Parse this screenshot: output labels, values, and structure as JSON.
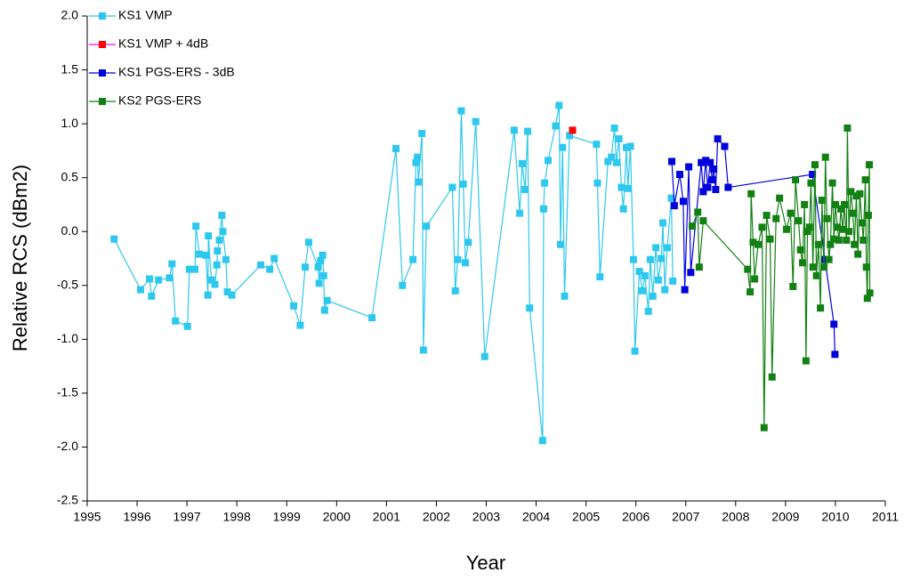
{
  "chart_data": {
    "type": "line",
    "xlabel": "Year",
    "ylabel": "Relative RCS (dBm2)",
    "xlim": [
      1995,
      2011
    ],
    "xticks": [
      1995,
      1996,
      1997,
      1998,
      1999,
      2000,
      2001,
      2002,
      2003,
      2004,
      2005,
      2006,
      2007,
      2008,
      2009,
      2010,
      2011
    ],
    "ylim": [
      -2.5,
      2.0
    ],
    "yticks": [
      {
        "value": 2,
        "label": "2.0"
      },
      1.5,
      {
        "value": 1,
        "label": "1.0"
      },
      0.5,
      {
        "value": 0,
        "label": "0.0"
      },
      -0.5,
      {
        "value": -1,
        "label": "-1.0"
      },
      -1.5,
      {
        "value": -2,
        "label": "-2.0"
      },
      -2.5
    ],
    "legend": "upper left",
    "grid": false,
    "series": [
      {
        "name": "KS1 VMP",
        "color": "#2ec8ee",
        "x": [
          1995.54,
          1996.07,
          1996.25,
          1996.29,
          1996.43,
          1996.65,
          1996.7,
          1996.77,
          1997.01,
          1997.05,
          1997.16,
          1997.18,
          1997.25,
          1997.38,
          1997.42,
          1997.43,
          1997.49,
          1997.56,
          1997.6,
          1997.61,
          1997.65,
          1997.7,
          1997.72,
          1997.78,
          1997.81,
          1997.9,
          1998.48,
          1998.66,
          1998.75,
          1999.14,
          1999.27,
          1999.37,
          1999.44,
          1999.63,
          1999.65,
          1999.68,
          1999.72,
          1999.74,
          1999.76,
          1999.81,
          2000.71,
          2001.19,
          2001.32,
          2001.53,
          2001.59,
          2001.62,
          2001.64,
          2001.71,
          2001.74,
          2001.8,
          2002.32,
          2002.38,
          2002.43,
          2002.5,
          2002.54,
          2002.58,
          2002.64,
          2002.79,
          2002.97,
          2003.56,
          2003.67,
          2003.72,
          2003.78,
          2003.83,
          2003.87,
          2004.13,
          2004.15,
          2004.17,
          2004.24,
          2004.39,
          2004.46,
          2004.49,
          2004.53,
          2004.57,
          2004.67,
          2005.21,
          2005.23,
          2005.28,
          2005.44,
          2005.51,
          2005.57,
          2005.61,
          2005.66,
          2005.71,
          2005.75,
          2005.81,
          2005.84,
          2005.89,
          2005.95,
          2005.98,
          2006.07,
          2006.13,
          2006.18,
          2006.25,
          2006.29,
          2006.34,
          2006.4,
          2006.45,
          2006.51,
          2006.54,
          2006.58,
          2006.63,
          2006.71,
          2006.74
        ],
        "values": [
          -0.07,
          -0.54,
          -0.44,
          -0.6,
          -0.45,
          -0.43,
          -0.3,
          -0.83,
          -0.88,
          -0.35,
          -0.35,
          0.05,
          -0.21,
          -0.22,
          -0.59,
          -0.04,
          -0.45,
          -0.49,
          -0.31,
          -0.18,
          -0.08,
          0.15,
          0.0,
          -0.26,
          -0.56,
          -0.59,
          -0.31,
          -0.35,
          -0.25,
          -0.69,
          -0.87,
          -0.33,
          -0.1,
          -0.33,
          -0.48,
          -0.27,
          -0.22,
          -0.41,
          -0.73,
          -0.64,
          -0.8,
          0.77,
          -0.5,
          -0.26,
          0.64,
          0.69,
          0.46,
          0.91,
          -1.1,
          0.05,
          0.41,
          -0.55,
          -0.26,
          1.12,
          0.44,
          -0.29,
          -0.1,
          1.02,
          -1.16,
          0.94,
          0.17,
          0.63,
          0.39,
          0.93,
          -0.71,
          -1.94,
          0.21,
          0.45,
          0.66,
          0.98,
          1.17,
          -0.12,
          0.78,
          -0.6,
          0.89,
          0.81,
          0.45,
          -0.42,
          0.65,
          0.69,
          0.96,
          0.64,
          0.86,
          0.41,
          0.21,
          0.78,
          0.4,
          0.79,
          -0.26,
          -1.11,
          -0.37,
          -0.55,
          -0.41,
          -0.74,
          -0.26,
          -0.6,
          -0.15,
          -0.45,
          -0.25,
          0.08,
          -0.54,
          -0.15,
          0.31,
          -0.46
        ]
      },
      {
        "name": "KS1 VMP + 4dB",
        "color": "#ff0000",
        "line_color": "#ff00ff",
        "x": [
          2004.73
        ],
        "values": [
          0.94
        ]
      },
      {
        "name": "KS1 PGS-ERS - 3dB",
        "color": "#0000dd",
        "x": [
          2006.72,
          2006.77,
          2006.88,
          2006.95,
          2006.98,
          2007.06,
          2007.1,
          2007.31,
          2007.35,
          2007.4,
          2007.44,
          2007.49,
          2007.53,
          2007.56,
          2007.6,
          2007.64,
          2007.78,
          2007.85,
          2009.54,
          2009.79,
          2009.97,
          2009.99
        ],
        "values": [
          0.65,
          0.24,
          0.53,
          0.28,
          -0.54,
          0.6,
          -0.38,
          0.64,
          0.37,
          0.66,
          0.41,
          0.64,
          0.48,
          0.58,
          0.39,
          0.86,
          0.79,
          0.41,
          0.53,
          -0.26,
          -0.86,
          -1.14
        ]
      },
      {
        "name": "KS2 PGS-ERS",
        "color": "#138013",
        "x": [
          2007.13,
          2007.24,
          2007.27,
          2007.35,
          2008.24,
          2008.29,
          2008.31,
          2008.35,
          2008.38,
          2008.45,
          2008.53,
          2008.57,
          2008.62,
          2008.69,
          2008.73,
          2008.81,
          2008.88,
          2009.02,
          2009.1,
          2009.15,
          2009.2,
          2009.26,
          2009.3,
          2009.34,
          2009.38,
          2009.41,
          2009.44,
          2009.48,
          2009.51,
          2009.55,
          2009.59,
          2009.62,
          2009.66,
          2009.7,
          2009.73,
          2009.77,
          2009.8,
          2009.83,
          2009.87,
          2009.9,
          2009.94,
          2009.97,
          2010.0,
          2010.04,
          2010.07,
          2010.11,
          2010.15,
          2010.18,
          2010.22,
          2010.24,
          2010.27,
          2010.31,
          2010.35,
          2010.38,
          2010.42,
          2010.45,
          2010.49,
          2010.53,
          2010.56,
          2010.6,
          2010.62,
          2010.64,
          2010.66,
          2010.68,
          2010.69
        ],
        "values": [
          0.05,
          0.18,
          -0.33,
          0.1,
          -0.35,
          -0.56,
          0.35,
          -0.1,
          -0.44,
          -0.12,
          0.04,
          -1.82,
          0.15,
          -0.07,
          -1.35,
          0.12,
          0.31,
          0.02,
          0.17,
          -0.51,
          0.48,
          0.1,
          -0.17,
          -0.29,
          0.25,
          -1.2,
          0.0,
          0.04,
          0.45,
          -0.33,
          0.62,
          -0.41,
          -0.12,
          -0.71,
          0.29,
          -0.33,
          0.69,
          0.12,
          -0.26,
          -0.12,
          0.45,
          -0.07,
          0.25,
          0.04,
          -0.08,
          0.21,
          0.02,
          0.25,
          -0.08,
          0.96,
          0.0,
          0.37,
          0.17,
          -0.12,
          0.33,
          -0.21,
          0.35,
          0.08,
          -0.08,
          0.48,
          -0.33,
          -0.62,
          0.15,
          0.62,
          -0.57
        ]
      }
    ]
  }
}
